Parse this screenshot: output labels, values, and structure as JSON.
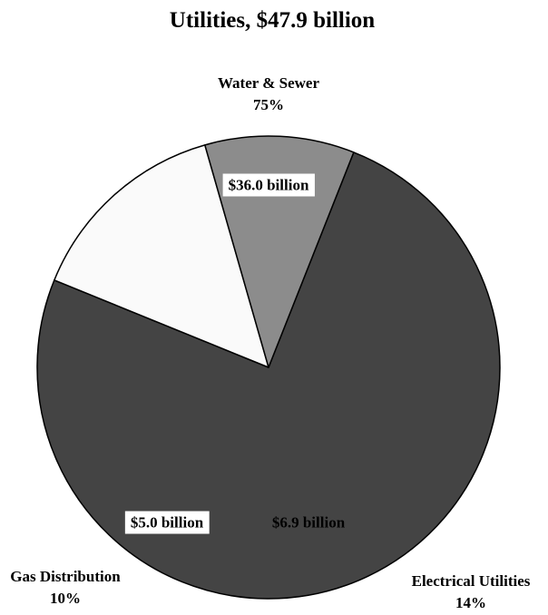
{
  "chart_data": {
    "type": "pie",
    "title": "Utilities, $47.9 billion",
    "slices": [
      {
        "name": "Water & Sewer",
        "value": 36.0,
        "value_label": "$36.0 billion",
        "percent": 75,
        "percent_label": "75%",
        "color": "#444444",
        "value_box": "#ffffff"
      },
      {
        "name": "Electrical Utilities",
        "value": 6.9,
        "value_label": "$6.9 billion",
        "percent": 14,
        "percent_label": "14%",
        "color": "#fafafa",
        "value_box": "none"
      },
      {
        "name": "Gas Distribution",
        "value": 5.0,
        "value_label": "$5.0 billion",
        "percent": 10,
        "percent_label": "10%",
        "color": "#8c8c8c",
        "value_box": "#ffffff"
      }
    ]
  }
}
